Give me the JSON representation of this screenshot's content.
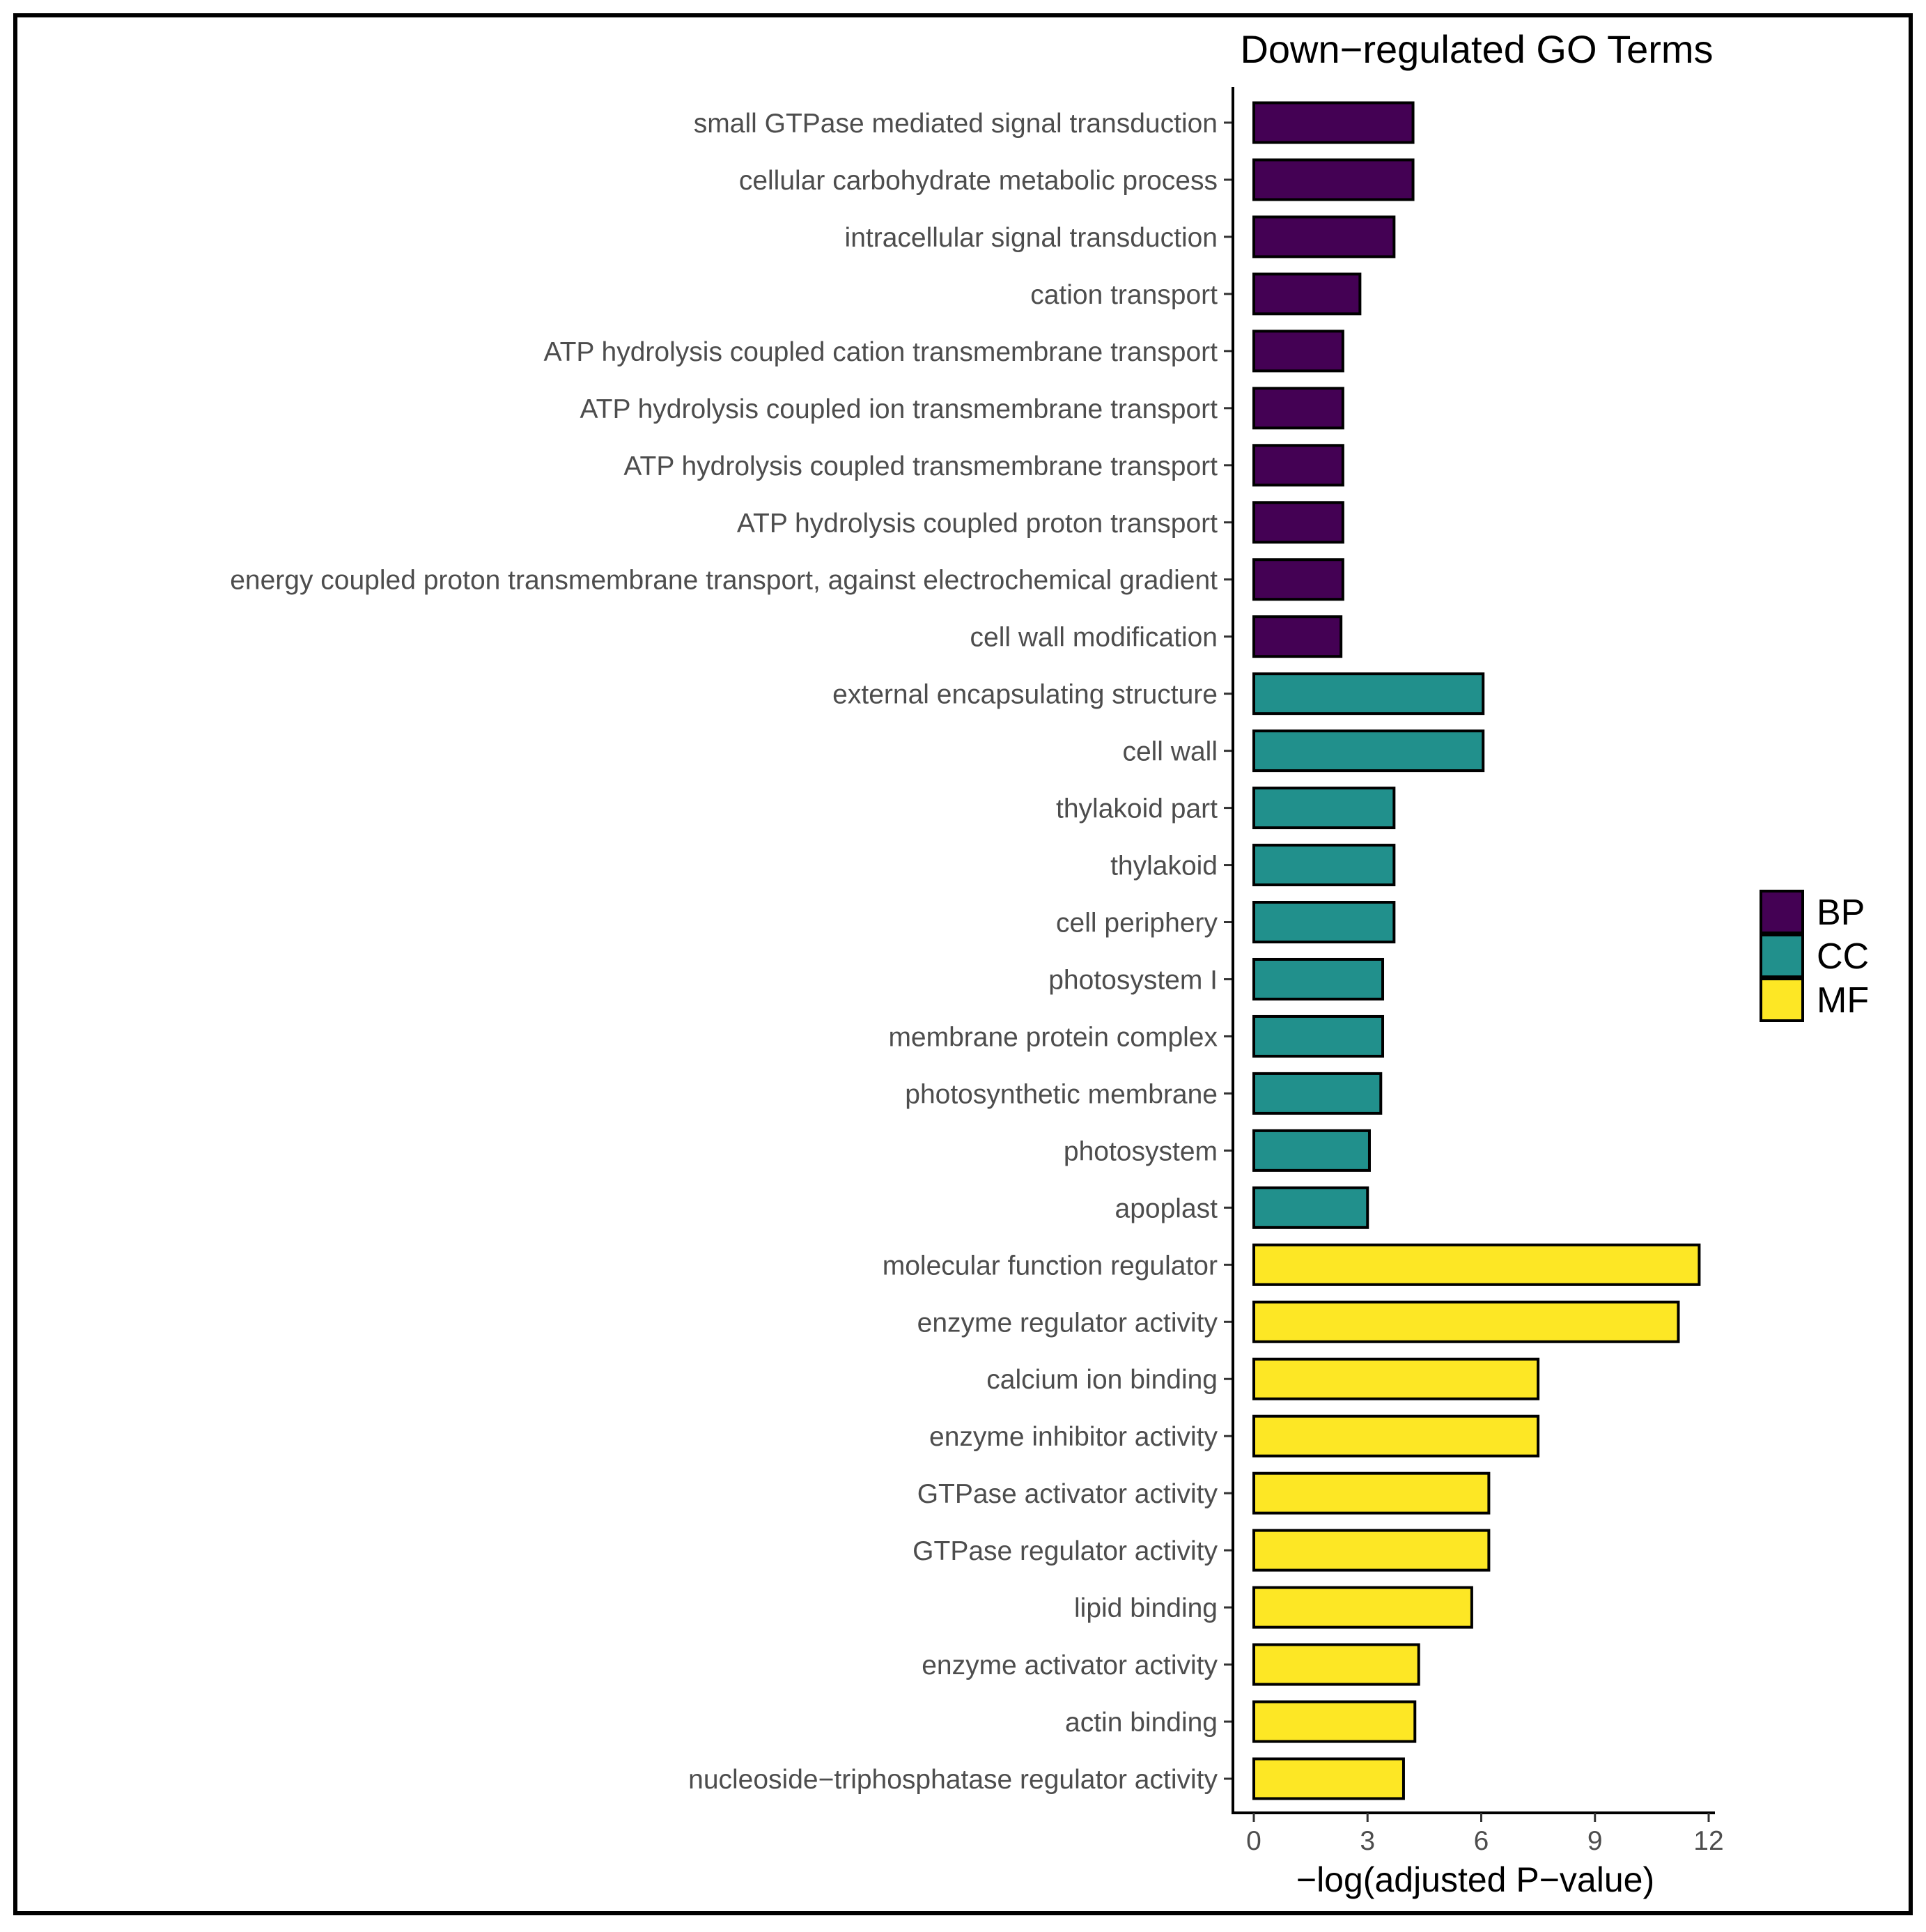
{
  "chart_data": {
    "type": "bar",
    "orientation": "horizontal",
    "title": "Down−regulated GO Terms",
    "xlabel": "−log(adjusted P−value)",
    "ylabel": "",
    "xlim": [
      0,
      12
    ],
    "xticks": [
      0,
      3,
      6,
      9,
      12
    ],
    "grid": false,
    "legend_position": "right",
    "legend": [
      {
        "name": "BP",
        "color": "#440154"
      },
      {
        "name": "CC",
        "color": "#21908C"
      },
      {
        "name": "MF",
        "color": "#FDE725"
      }
    ],
    "categories": [
      "small GTPase mediated signal transduction",
      "cellular carbohydrate metabolic process",
      "intracellular signal transduction",
      "cation transport",
      "ATP hydrolysis coupled cation transmembrane transport",
      "ATP hydrolysis coupled ion transmembrane transport",
      "ATP hydrolysis coupled transmembrane transport",
      "ATP hydrolysis coupled proton transport",
      "energy coupled proton transmembrane transport, against electrochemical gradient",
      "cell wall modification",
      "external encapsulating structure",
      "cell wall",
      "thylakoid part",
      "thylakoid",
      "cell periphery",
      "photosystem I",
      "membrane protein complex",
      "photosynthetic membrane",
      "photosystem",
      "apoplast",
      "molecular function regulator",
      "enzyme regulator activity",
      "calcium ion binding",
      "enzyme inhibitor activity",
      "GTPase activator activity",
      "GTPase regulator activity",
      "lipid binding",
      "enzyme activator activity",
      "actin binding",
      "nucleoside−triphosphatase regulator activity"
    ],
    "values": [
      4.2,
      4.2,
      3.7,
      2.8,
      2.35,
      2.35,
      2.35,
      2.35,
      2.35,
      2.3,
      6.05,
      6.05,
      3.7,
      3.7,
      3.7,
      3.4,
      3.4,
      3.35,
      3.05,
      3.0,
      11.75,
      11.2,
      7.5,
      7.5,
      6.2,
      6.2,
      5.75,
      4.35,
      4.25,
      3.95
    ],
    "groups": [
      "BP",
      "BP",
      "BP",
      "BP",
      "BP",
      "BP",
      "BP",
      "BP",
      "BP",
      "BP",
      "CC",
      "CC",
      "CC",
      "CC",
      "CC",
      "CC",
      "CC",
      "CC",
      "CC",
      "CC",
      "MF",
      "MF",
      "MF",
      "MF",
      "MF",
      "MF",
      "MF",
      "MF",
      "MF",
      "MF"
    ]
  }
}
